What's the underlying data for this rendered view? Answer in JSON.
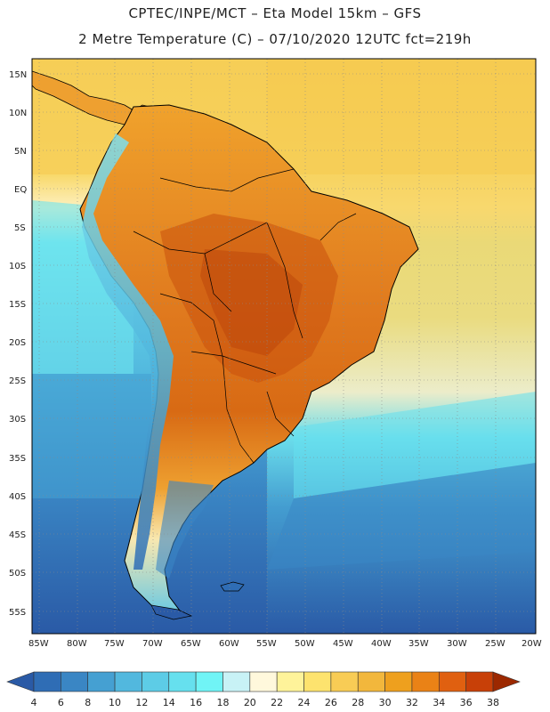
{
  "title_line1": "CPTEC/INPE/MCT –  Eta Model 15km – GFS",
  "title_line2": "2 Metre Temperature (C) – 07/10/2020 12UTC fct=219h",
  "lat_labels": [
    "15N",
    "10N",
    "5N",
    "EQ",
    "5S",
    "10S",
    "15S",
    "20S",
    "25S",
    "30S",
    "35S",
    "40S",
    "45S",
    "50S",
    "55S"
  ],
  "lon_labels": [
    "85W",
    "80W",
    "75W",
    "70W",
    "65W",
    "60W",
    "55W",
    "50W",
    "45W",
    "40W",
    "35W",
    "30W",
    "25W",
    "20W"
  ],
  "colorbar": {
    "labels": [
      "4",
      "6",
      "8",
      "10",
      "12",
      "14",
      "16",
      "18",
      "20",
      "22",
      "24",
      "26",
      "28",
      "30",
      "32",
      "34",
      "36",
      "38"
    ],
    "colors": [
      "#2a5aa6",
      "#2f6db5",
      "#3a86c4",
      "#45a0d2",
      "#52b8de",
      "#5dcce6",
      "#66e0ee",
      "#70f4f6",
      "#c8f2f6",
      "#fff8dc",
      "#fef39a",
      "#fde36e",
      "#f8cc55",
      "#f2b73c",
      "#eea01e",
      "#ea8216",
      "#e06010",
      "#c84008",
      "#9c2800"
    ]
  },
  "colors": {
    "ocean_south": "#2a5aa6",
    "ocean_mid": "#4a9bd0",
    "ocean_cyan": "#5fd6e8",
    "ocean_north": "#f5cf57",
    "land_hot": "#e07a1e",
    "land_warm": "#f0a12a",
    "andes": "#5fc6e0"
  }
}
